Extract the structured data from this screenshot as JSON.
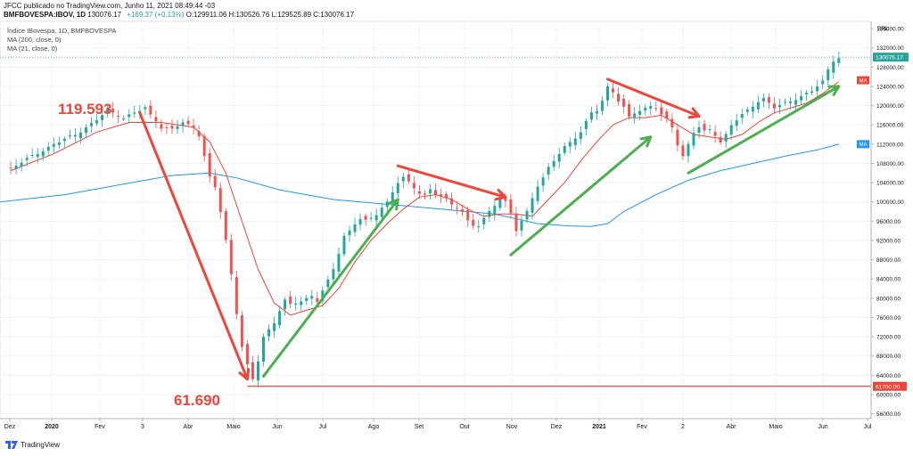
{
  "header": {
    "published": "JFCC publicado no TradingView.com, Junho 11, 2021 08:49:44 -03",
    "symbol": "BMFBOVESPA:IBOV, 1D",
    "price": "130076.17",
    "change": "+169.37 (+0.13%)",
    "ohlc": "O:129911.06 H:130526.76 L:129525.89 C:130076.17"
  },
  "legend": {
    "title": "Índice IBovespa, 1D, BMFBOVESPA",
    "ma1": "MA (200, close, 0)",
    "ma2": "MA (21, close, 0)"
  },
  "brand": {
    "name": "TradingView"
  },
  "colors": {
    "up": "#26a69a",
    "down": "#ef5350",
    "ma200": "#2196f3",
    "ma21": "#f44336",
    "arrow_red": "#f0453a",
    "arrow_green": "#4caf50",
    "last_price_bg": "#26a69a",
    "ma_tag_red": "#f44336",
    "ma_tag_blue": "#2196f3"
  },
  "chart_data": {
    "type": "candlestick",
    "currency": "BRL",
    "x_tick_labels": [
      "Dez",
      "2020",
      "Fev",
      "3",
      "Abr",
      "Maio",
      "Jun",
      "Jul",
      "Ago",
      "Set",
      "Out",
      "Nov",
      "Dez",
      "2021",
      "Fev",
      "2",
      "Abr",
      "Maio",
      "Jun",
      "Jul"
    ],
    "y_tick_labels": [
      "56000.00",
      "60000.00",
      "64000.00",
      "68000.00",
      "72000.00",
      "76000.00",
      "80000.00",
      "84000.00",
      "88000.00",
      "92000.00",
      "96000.00",
      "100000.00",
      "104000.00",
      "108000.00",
      "112000.00",
      "116000.00",
      "120000.00",
      "124000.00",
      "128000.00",
      "132000.00",
      "136000.00"
    ],
    "ylim": [
      55000,
      137500
    ],
    "last_price": "130076.17",
    "ma_tag_label": "MA",
    "horizontal_line": {
      "value": 61700,
      "label": "61700.00"
    },
    "annotations": [
      {
        "text": "119.593",
        "value": 119593
      },
      {
        "text": "61.690",
        "value": 61690
      }
    ],
    "close_path": [
      [
        -10,
        107000
      ],
      [
        -6,
        109500
      ],
      [
        -2,
        112000
      ],
      [
        2,
        114000
      ],
      [
        6,
        117000
      ],
      [
        8,
        119000
      ],
      [
        9,
        118500
      ],
      [
        11,
        117500
      ],
      [
        13,
        118500
      ],
      [
        15,
        119500
      ],
      [
        16,
        118000
      ],
      [
        17,
        117000
      ],
      [
        18,
        115500
      ],
      [
        20,
        115000
      ],
      [
        22,
        116500
      ],
      [
        24,
        115500
      ],
      [
        25,
        114000
      ],
      [
        26,
        109500
      ],
      [
        27,
        105000
      ],
      [
        28,
        103000
      ],
      [
        29,
        98000
      ],
      [
        30,
        92000
      ],
      [
        31,
        85000
      ],
      [
        32,
        77000
      ],
      [
        33,
        70000
      ],
      [
        34,
        66000
      ],
      [
        35,
        63000
      ],
      [
        36,
        67000
      ],
      [
        37,
        72000
      ],
      [
        38,
        73500
      ],
      [
        39,
        75000
      ],
      [
        40,
        77500
      ],
      [
        41,
        79500
      ],
      [
        42,
        78500
      ],
      [
        43,
        79000
      ],
      [
        44,
        79500
      ],
      [
        45,
        80000
      ],
      [
        46,
        80500
      ],
      [
        47,
        79500
      ],
      [
        48,
        81500
      ],
      [
        49,
        83500
      ],
      [
        50,
        86000
      ],
      [
        51,
        89500
      ],
      [
        52,
        93000
      ],
      [
        53,
        94000
      ],
      [
        54,
        95500
      ],
      [
        55,
        96500
      ],
      [
        56,
        96000
      ],
      [
        57,
        96500
      ],
      [
        58,
        97500
      ],
      [
        59,
        99000
      ],
      [
        60,
        100000
      ],
      [
        61,
        102000
      ],
      [
        62,
        104000
      ],
      [
        63,
        105000
      ],
      [
        64,
        104000
      ],
      [
        65,
        103000
      ],
      [
        66,
        102000
      ],
      [
        67,
        101500
      ],
      [
        68,
        102500
      ],
      [
        69,
        101500
      ],
      [
        70,
        101000
      ],
      [
        71,
        100500
      ],
      [
        72,
        99500
      ],
      [
        73,
        99000
      ],
      [
        74,
        98000
      ],
      [
        75,
        96000
      ],
      [
        76,
        95000
      ],
      [
        77,
        95000
      ],
      [
        78,
        96500
      ],
      [
        79,
        98000
      ],
      [
        80,
        99500
      ],
      [
        81,
        101000
      ],
      [
        82,
        100000
      ],
      [
        83,
        97500
      ],
      [
        84,
        94000
      ],
      [
        85,
        96000
      ],
      [
        86,
        98000
      ],
      [
        87,
        101000
      ],
      [
        88,
        103500
      ],
      [
        89,
        105000
      ],
      [
        90,
        107000
      ],
      [
        91,
        108500
      ],
      [
        92,
        110000
      ],
      [
        93,
        111500
      ],
      [
        94,
        112500
      ],
      [
        95,
        113500
      ],
      [
        96,
        114500
      ],
      [
        97,
        116500
      ],
      [
        98,
        118500
      ],
      [
        99,
        119000
      ],
      [
        100,
        121000
      ],
      [
        101,
        124000
      ],
      [
        102,
        123000
      ],
      [
        103,
        121000
      ],
      [
        104,
        119500
      ],
      [
        105,
        117500
      ],
      [
        106,
        118500
      ],
      [
        107,
        119000
      ],
      [
        108,
        119500
      ],
      [
        109,
        120000
      ],
      [
        110,
        119500
      ],
      [
        111,
        118000
      ],
      [
        112,
        117000
      ],
      [
        113,
        115500
      ],
      [
        114,
        112000
      ],
      [
        115,
        109500
      ],
      [
        116,
        112000
      ],
      [
        117,
        114500
      ],
      [
        118,
        115500
      ],
      [
        119,
        114500
      ],
      [
        120,
        115000
      ],
      [
        121,
        114000
      ],
      [
        122,
        112500
      ],
      [
        123,
        114000
      ],
      [
        124,
        116000
      ],
      [
        125,
        117000
      ],
      [
        126,
        118000
      ],
      [
        127,
        119000
      ],
      [
        128,
        120000
      ],
      [
        129,
        121000
      ],
      [
        130,
        121500
      ],
      [
        131,
        120500
      ],
      [
        132,
        119500
      ],
      [
        133,
        120000
      ],
      [
        134,
        120500
      ],
      [
        135,
        121000
      ],
      [
        136,
        121500
      ],
      [
        137,
        122000
      ],
      [
        138,
        122500
      ],
      [
        139,
        123000
      ],
      [
        140,
        124000
      ],
      [
        141,
        125000
      ],
      [
        142,
        127500
      ],
      [
        143,
        129500
      ],
      [
        144,
        130000
      ]
    ],
    "ma21_path": [
      [
        -10,
        106500
      ],
      [
        -2,
        110000
      ],
      [
        6,
        114500
      ],
      [
        12,
        116500
      ],
      [
        18,
        116500
      ],
      [
        24,
        115500
      ],
      [
        27,
        112500
      ],
      [
        30,
        106000
      ],
      [
        33,
        96000
      ],
      [
        36,
        86000
      ],
      [
        39,
        79000
      ],
      [
        42,
        76500
      ],
      [
        45,
        77500
      ],
      [
        48,
        78500
      ],
      [
        51,
        82000
      ],
      [
        54,
        87500
      ],
      [
        57,
        92000
      ],
      [
        60,
        95500
      ],
      [
        63,
        98500
      ],
      [
        66,
        101000
      ],
      [
        69,
        101500
      ],
      [
        72,
        100500
      ],
      [
        75,
        98500
      ],
      [
        78,
        97000
      ],
      [
        81,
        97500
      ],
      [
        84,
        97500
      ],
      [
        87,
        97000
      ],
      [
        90,
        100500
      ],
      [
        93,
        104000
      ],
      [
        96,
        108500
      ],
      [
        99,
        112500
      ],
      [
        102,
        116000
      ],
      [
        105,
        117500
      ],
      [
        108,
        117500
      ],
      [
        111,
        118000
      ],
      [
        114,
        116000
      ],
      [
        117,
        114000
      ],
      [
        120,
        113500
      ],
      [
        123,
        113000
      ],
      [
        126,
        114000
      ],
      [
        129,
        116500
      ],
      [
        132,
        118500
      ],
      [
        135,
        119500
      ],
      [
        138,
        120500
      ],
      [
        141,
        122500
      ],
      [
        144,
        125000
      ]
    ],
    "ma200_path": [
      [
        -12,
        100000
      ],
      [
        0,
        101500
      ],
      [
        10,
        103500
      ],
      [
        20,
        105500
      ],
      [
        27,
        106000
      ],
      [
        32,
        105000
      ],
      [
        40,
        102500
      ],
      [
        50,
        100500
      ],
      [
        60,
        99500
      ],
      [
        70,
        98500
      ],
      [
        80,
        97500
      ],
      [
        88,
        95500
      ],
      [
        94,
        95000
      ],
      [
        98,
        94900
      ],
      [
        101,
        95500
      ],
      [
        104,
        98000
      ],
      [
        110,
        101500
      ],
      [
        116,
        104500
      ],
      [
        122,
        106500
      ],
      [
        128,
        108000
      ],
      [
        134,
        109500
      ],
      [
        140,
        110800
      ],
      [
        144,
        112000
      ]
    ],
    "red_arrows": [
      {
        "from": [
          14,
          118500
        ],
        "to": [
          34,
          63200
        ]
      },
      {
        "from": [
          62,
          107500
        ],
        "to": [
          82,
          101000
        ]
      },
      {
        "from": [
          101,
          125500
        ],
        "to": [
          118,
          117800
        ]
      }
    ],
    "green_arrows": [
      {
        "from": [
          37,
          63800
        ],
        "to": [
          62,
          100500
        ]
      },
      {
        "from": [
          83,
          89000
        ],
        "to": [
          109,
          113500
        ]
      },
      {
        "from": [
          116,
          106000
        ],
        "to": [
          144,
          124000
        ]
      }
    ]
  }
}
